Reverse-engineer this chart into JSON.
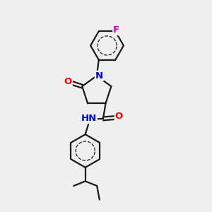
{
  "bg_color": "#efefef",
  "bond_color": "#1a1a1a",
  "bond_width": 1.6,
  "atom_colors": {
    "O": "#ff0000",
    "N": "#0000cc",
    "F": "#cc00cc",
    "C": "#1a1a1a"
  },
  "figsize": [
    3.0,
    3.0
  ],
  "dpi": 100
}
